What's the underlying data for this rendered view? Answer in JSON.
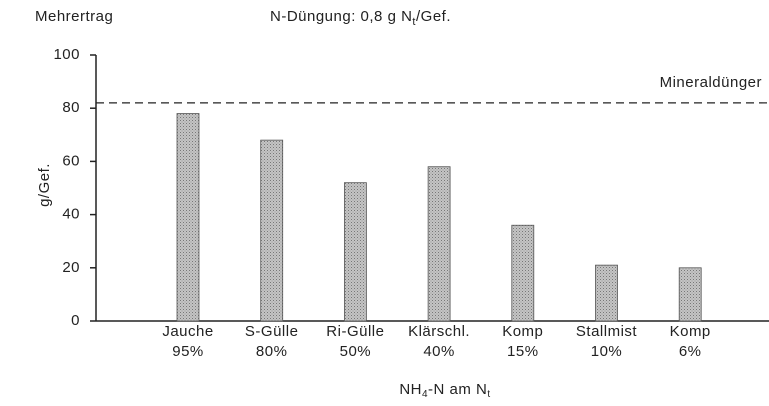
{
  "chart_data": {
    "type": "bar",
    "title": [
      "N-Düngung: 0,8 g N",
      "t",
      "/Gef."
    ],
    "y_title": "Mehrertrag",
    "ylabel": "g/Gef.",
    "xlabel": [
      "NH",
      "4",
      "-N am N",
      "t"
    ],
    "categories": [
      [
        "Jauche",
        "95%"
      ],
      [
        "S-Gülle",
        "80%"
      ],
      [
        "Ri-Gülle",
        "50%"
      ],
      [
        "Klärschl.",
        "40%"
      ],
      [
        "Komp",
        "15%"
      ],
      [
        "Stallmist",
        "10%"
      ],
      [
        "Komp",
        "6%"
      ]
    ],
    "values": [
      78,
      68,
      52,
      58,
      36,
      21,
      20
    ],
    "color": "#c4c4c4",
    "ylim": [
      0,
      100
    ],
    "yticks": [
      0,
      20,
      40,
      60,
      80,
      100
    ],
    "reference": {
      "label": "Mineraldünger",
      "value": 82
    }
  }
}
